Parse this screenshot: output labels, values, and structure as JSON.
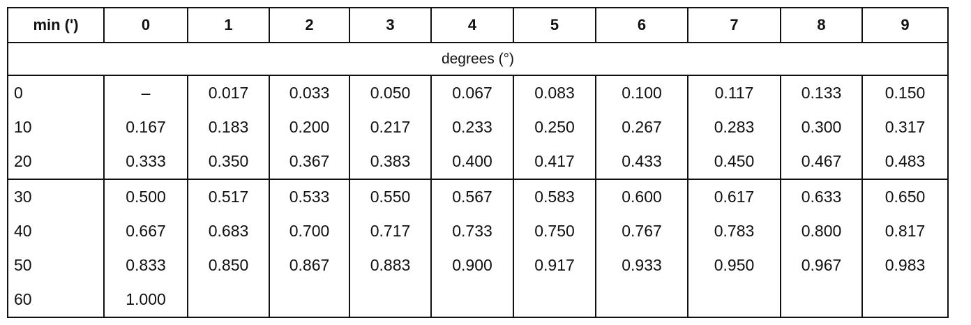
{
  "table": {
    "header": [
      "min (')",
      "0",
      "1",
      "2",
      "3",
      "4",
      "5",
      "6",
      "7",
      "8",
      "9"
    ],
    "subheader": "degrees (°)",
    "groups": [
      {
        "rows": [
          [
            "0",
            "–",
            "0.017",
            "0.033",
            "0.050",
            "0.067",
            "0.083",
            "0.100",
            "0.117",
            "0.133",
            "0.150"
          ],
          [
            "10",
            "0.167",
            "0.183",
            "0.200",
            "0.217",
            "0.233",
            "0.250",
            "0.267",
            "0.283",
            "0.300",
            "0.317"
          ],
          [
            "20",
            "0.333",
            "0.350",
            "0.367",
            "0.383",
            "0.400",
            "0.417",
            "0.433",
            "0.450",
            "0.467",
            "0.483"
          ]
        ]
      },
      {
        "rows": [
          [
            "30",
            "0.500",
            "0.517",
            "0.533",
            "0.550",
            "0.567",
            "0.583",
            "0.600",
            "0.617",
            "0.633",
            "0.650"
          ],
          [
            "40",
            "0.667",
            "0.683",
            "0.700",
            "0.717",
            "0.733",
            "0.750",
            "0.767",
            "0.783",
            "0.800",
            "0.817"
          ],
          [
            "50",
            "0.833",
            "0.850",
            "0.867",
            "0.883",
            "0.900",
            "0.917",
            "0.933",
            "0.950",
            "0.967",
            "0.983"
          ],
          [
            "60",
            "1.000"
          ]
        ]
      }
    ]
  }
}
